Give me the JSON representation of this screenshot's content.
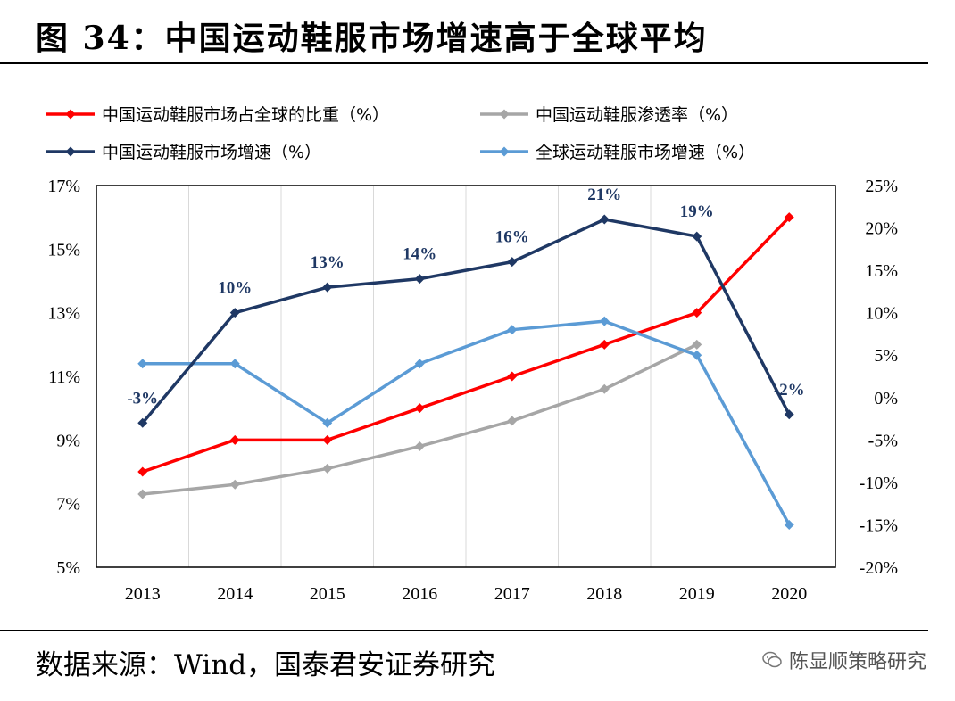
{
  "header": {
    "title": "图 34：中国运动鞋服市场增速高于全球平均"
  },
  "footer": {
    "source": "数据来源：Wind，国泰君安证券研究",
    "watermark": "陈显顺策略研究"
  },
  "chart_data": {
    "type": "line",
    "categories": [
      "2013",
      "2014",
      "2015",
      "2016",
      "2017",
      "2018",
      "2019",
      "2020"
    ],
    "y_left": {
      "ylim": [
        5,
        17
      ],
      "ticks": [
        "5%",
        "7%",
        "9%",
        "11%",
        "13%",
        "15%",
        "17%"
      ],
      "tick_values": [
        5,
        7,
        9,
        11,
        13,
        15,
        17
      ]
    },
    "y_right": {
      "ylim": [
        -20,
        25
      ],
      "ticks": [
        "-20%",
        "-15%",
        "-10%",
        "-5%",
        "0%",
        "5%",
        "10%",
        "15%",
        "20%",
        "25%"
      ],
      "tick_values": [
        -20,
        -15,
        -10,
        -5,
        0,
        5,
        10,
        15,
        20,
        25
      ]
    },
    "grid": "vertical",
    "legend_position": "top",
    "series": [
      {
        "name": "中国运动鞋服市场占全球的比重（%）",
        "axis": "left",
        "color": "#ff0000",
        "values": [
          8,
          9,
          9,
          10,
          11,
          12,
          13,
          16
        ]
      },
      {
        "name": "中国运动鞋服渗透率（%）",
        "axis": "left",
        "color": "#a6a6a6",
        "values": [
          7.3,
          7.6,
          8.1,
          8.8,
          9.6,
          10.6,
          12,
          null
        ]
      },
      {
        "name": "中国运动鞋服市场增速（%）",
        "axis": "right",
        "color": "#1f3864",
        "values": [
          -3,
          10,
          13,
          14,
          16,
          21,
          19,
          -2
        ],
        "data_labels": [
          "-3%",
          "10%",
          "13%",
          "14%",
          "16%",
          "21%",
          "19%",
          "-2%"
        ]
      },
      {
        "name": "全球运动鞋服市场增速（%）",
        "axis": "right",
        "color": "#5b9bd5",
        "values": [
          4,
          4,
          -3,
          4,
          8,
          9,
          5,
          -15
        ]
      }
    ]
  }
}
